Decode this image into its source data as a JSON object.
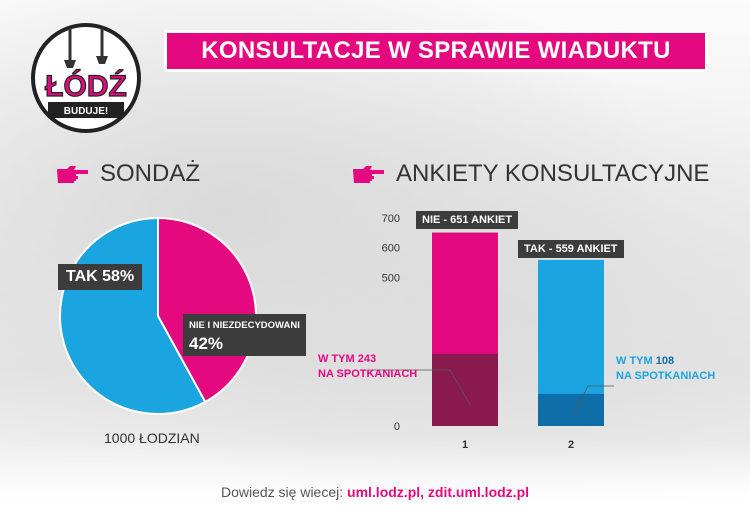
{
  "header": {
    "title": "KONSULTACJE W SPRAWIE WIADUKTU",
    "logo_text": "ŁÓDŹ",
    "logo_sub": "BUDUJE!"
  },
  "poll": {
    "heading": "SONDAŻ",
    "caption": "1000 ŁODZIAN",
    "yes_label": "TAK 58%",
    "no_label_line1": "NIE I NIEZDECYDOWANI",
    "no_label_line2": "42%"
  },
  "surveys": {
    "heading": "ANKIETY KONSULTACYJNE",
    "bar1_label": "NIE - 651 ANKIET",
    "bar2_label": "TAK - 559 ANKIET",
    "bar1_note_l1": "W TYM 243",
    "bar1_note_l2": "NA SPOTKANIACH",
    "bar2_note_l1a": "W TYM",
    "bar2_note_l1b": "108",
    "bar2_note_l2": "NA SPOTKANIACH"
  },
  "footer": {
    "prefix": "Dowiedz się wiecej:",
    "links": "uml.lodz.pl, zdit.uml.lodz.pl"
  },
  "colors": {
    "magenta": "#e5097f",
    "blue": "#1aa4e0",
    "dark_magenta": "#8a1a4e",
    "dark_blue": "#0f6ea8"
  },
  "chart_data": [
    {
      "type": "pie",
      "labels": [
        "TAK",
        "NIE I NIEZDECYDOWANI"
      ],
      "values": [
        58,
        42
      ],
      "colors": [
        "#1aa4e0",
        "#e5097f"
      ]
    },
    {
      "type": "bar",
      "categories": [
        "1",
        "2"
      ],
      "series": [
        {
          "values": [
            651,
            559
          ]
        },
        {
          "values": [
            243,
            108
          ]
        }
      ],
      "yticks": [
        0,
        500,
        600,
        700
      ],
      "ylim": [
        0,
        700
      ],
      "grid": false
    }
  ]
}
